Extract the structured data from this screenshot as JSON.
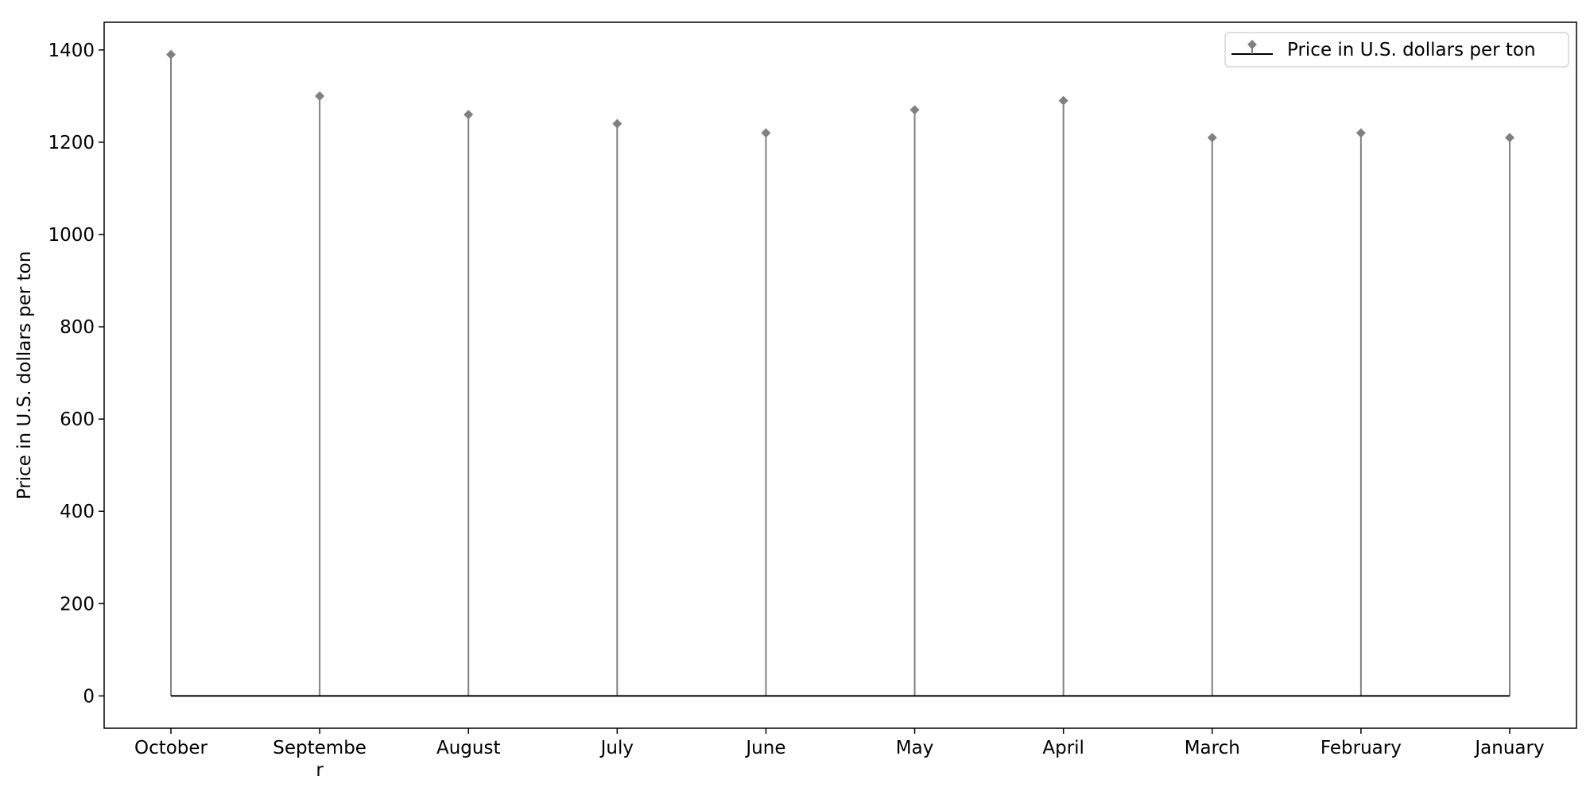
{
  "chart_data": {
    "type": "stem",
    "categories": [
      "October",
      "Septembe\nr",
      "August",
      "July",
      "June",
      "May",
      "April",
      "March",
      "February",
      "January"
    ],
    "values": [
      1390,
      1300,
      1260,
      1240,
      1220,
      1270,
      1290,
      1210,
      1220,
      1210
    ],
    "series": [
      {
        "name": "Price in U.S. dollars per ton",
        "values": [
          1390,
          1300,
          1260,
          1240,
          1220,
          1270,
          1290,
          1210,
          1220,
          1210
        ]
      }
    ],
    "title": "",
    "xlabel": "",
    "ylabel": "Price in U.S. dollars per ton",
    "ylim": [
      -70,
      1460
    ],
    "yticks": [
      0,
      200,
      400,
      600,
      800,
      1000,
      1200,
      1400
    ],
    "grid": false,
    "legend_position": "top-right",
    "colors": {
      "marker": "#808080",
      "stem": "#808080",
      "baseline": "#000000"
    }
  }
}
